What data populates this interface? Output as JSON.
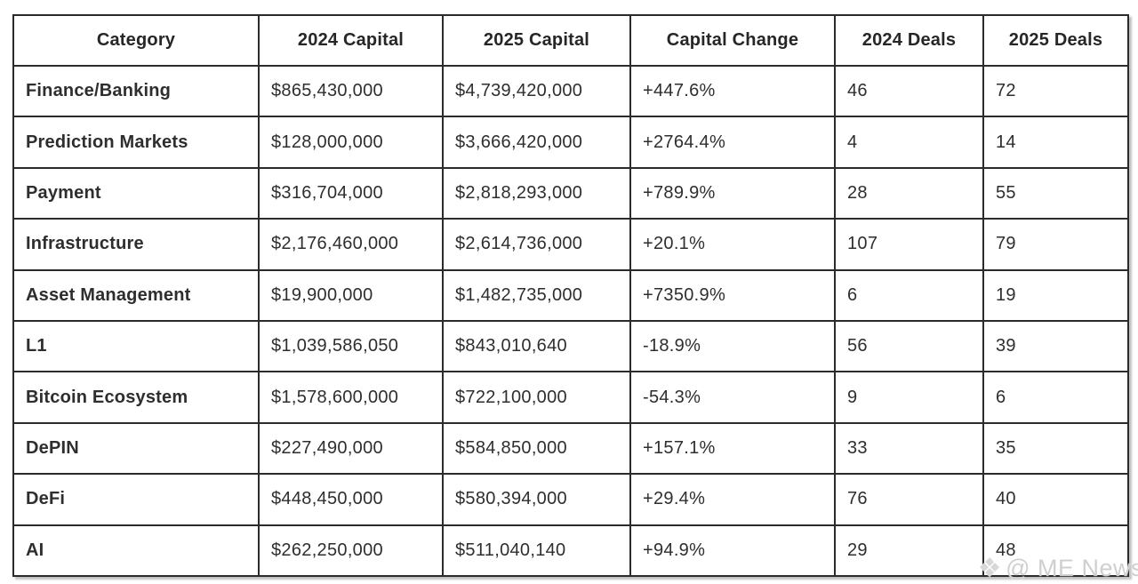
{
  "chart_data": {
    "type": "table",
    "columns": [
      "Category",
      "2024 Capital",
      "2025 Capital",
      "Capital Change",
      "2024 Deals",
      "2025 Deals"
    ],
    "rows": [
      {
        "category": "Finance/Banking",
        "capital_2024": "$865,430,000",
        "capital_2025": "$4,739,420,000",
        "capital_change": "+447.6%",
        "deals_2024": "46",
        "deals_2025": "72"
      },
      {
        "category": "Prediction Markets",
        "capital_2024": "$128,000,000",
        "capital_2025": "$3,666,420,000",
        "capital_change": "+2764.4%",
        "deals_2024": "4",
        "deals_2025": "14"
      },
      {
        "category": "Payment",
        "capital_2024": "$316,704,000",
        "capital_2025": "$2,818,293,000",
        "capital_change": "+789.9%",
        "deals_2024": "28",
        "deals_2025": "55"
      },
      {
        "category": "Infrastructure",
        "capital_2024": "$2,176,460,000",
        "capital_2025": "$2,614,736,000",
        "capital_change": "+20.1%",
        "deals_2024": "107",
        "deals_2025": "79"
      },
      {
        "category": "Asset Management",
        "capital_2024": "$19,900,000",
        "capital_2025": "$1,482,735,000",
        "capital_change": "+7350.9%",
        "deals_2024": "6",
        "deals_2025": "19"
      },
      {
        "category": "L1",
        "capital_2024": "$1,039,586,050",
        "capital_2025": "$843,010,640",
        "capital_change": "-18.9%",
        "deals_2024": "56",
        "deals_2025": "39"
      },
      {
        "category": "Bitcoin Ecosystem",
        "capital_2024": "$1,578,600,000",
        "capital_2025": "$722,100,000",
        "capital_change": "-54.3%",
        "deals_2024": "9",
        "deals_2025": "6"
      },
      {
        "category": "DePIN",
        "capital_2024": "$227,490,000",
        "capital_2025": "$584,850,000",
        "capital_change": "+157.1%",
        "deals_2024": "33",
        "deals_2025": "35"
      },
      {
        "category": "DeFi",
        "capital_2024": "$448,450,000",
        "capital_2025": "$580,394,000",
        "capital_change": "+29.4%",
        "deals_2024": "76",
        "deals_2025": "40"
      },
      {
        "category": "AI",
        "capital_2024": "$262,250,000",
        "capital_2025": "$511,040,140",
        "capital_change": "+94.9%",
        "deals_2024": "29",
        "deals_2025": "48"
      }
    ]
  },
  "watermark": {
    "icon": "gem-logo-icon",
    "icon_glyph": "❖",
    "text": "@ ME News"
  }
}
